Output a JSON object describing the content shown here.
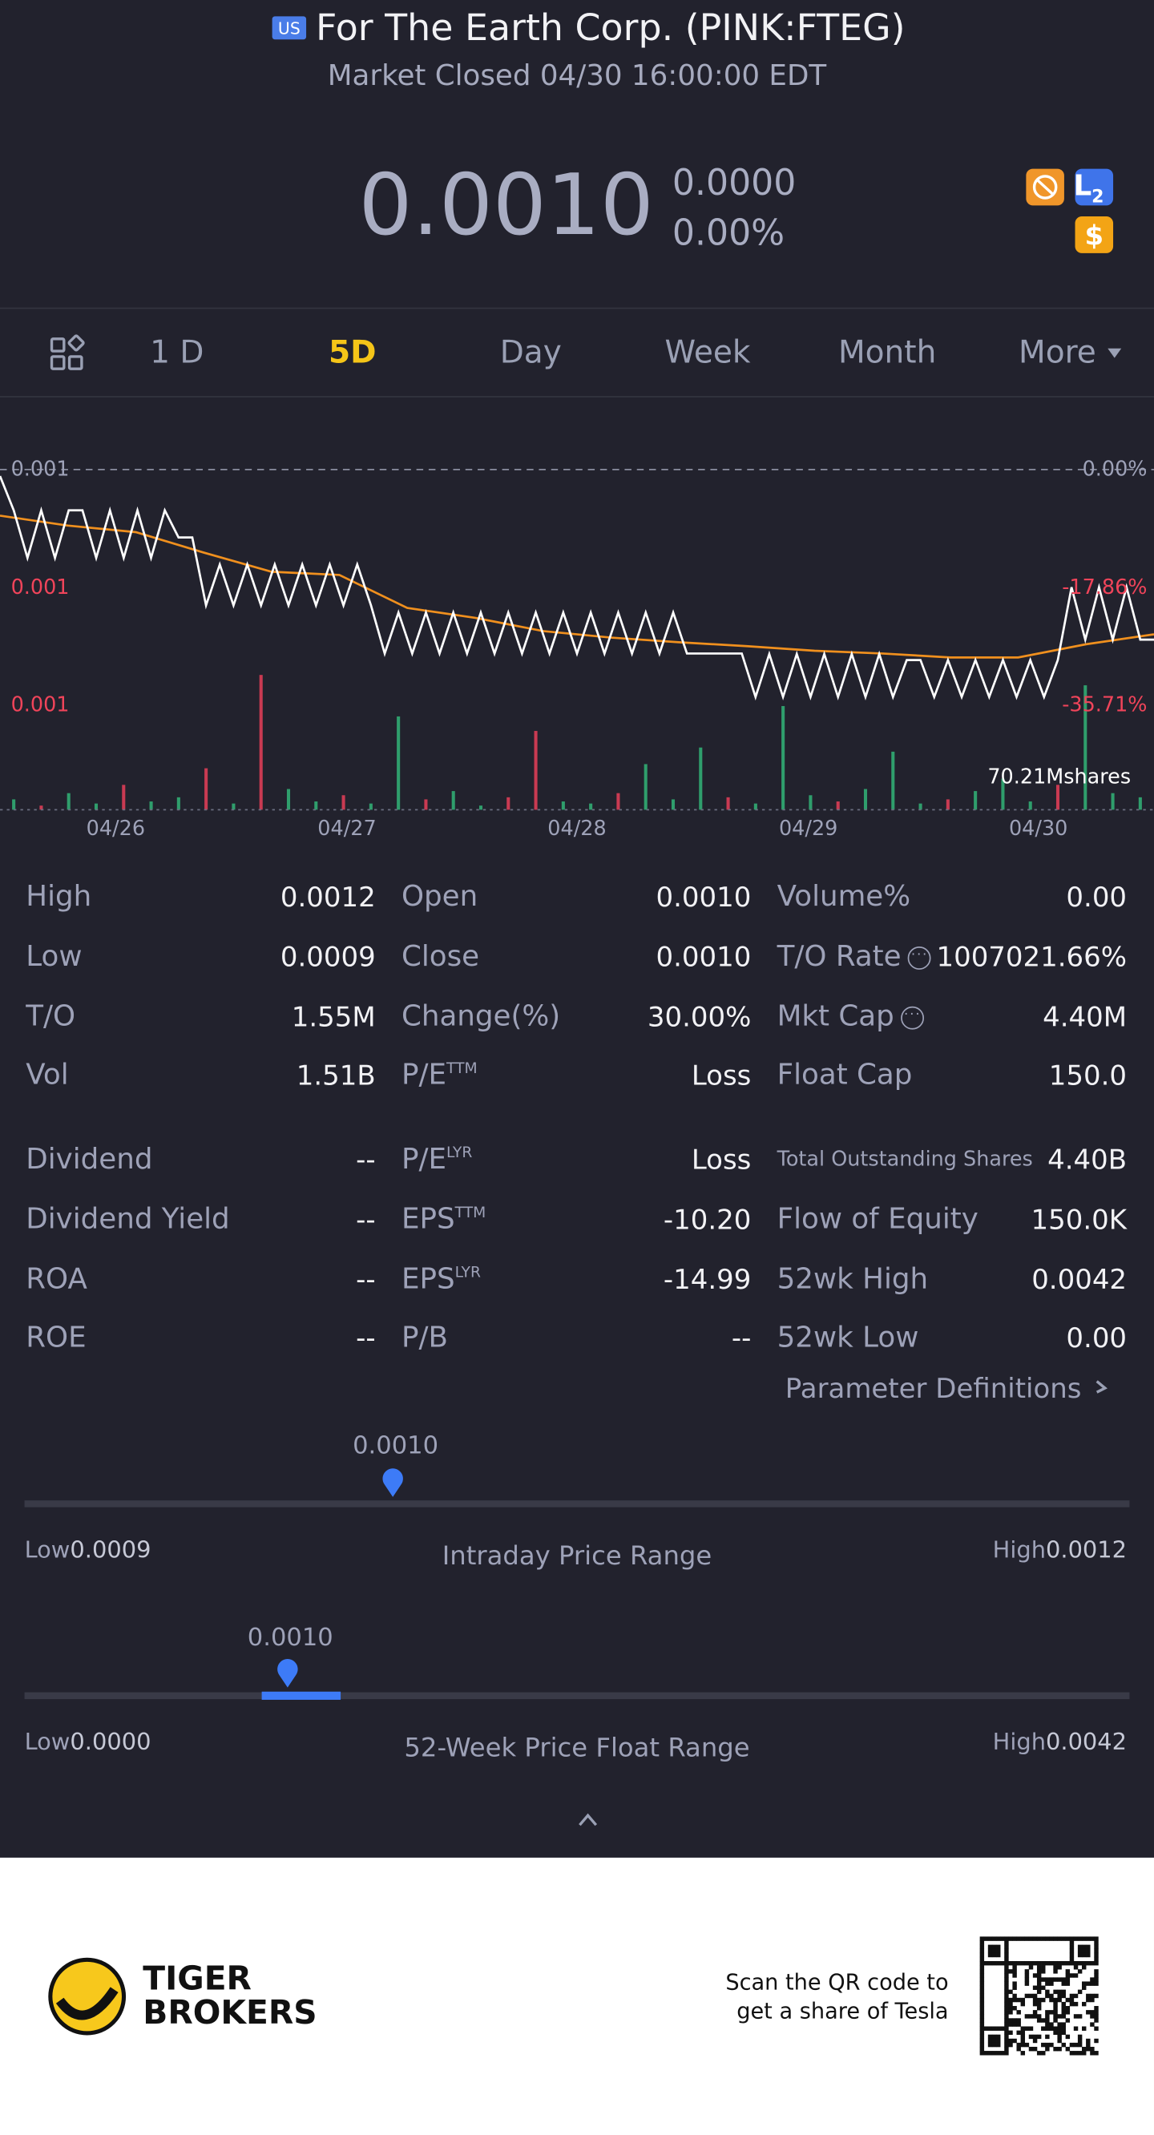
{
  "header": {
    "badge": "US",
    "title": "For The Earth Corp. (PINK:FTEG)",
    "status": "Market Closed 04/30 16:00:00 EDT"
  },
  "quote": {
    "price": "0.0010",
    "change": "0.0000",
    "change_percent": "0.00%",
    "level_badge": "L",
    "level_badge_sub": "2",
    "currency_badge": "$"
  },
  "tabs": {
    "items": [
      "1 D",
      "5D",
      "Day",
      "Week",
      "Month",
      "More"
    ],
    "active": 1
  },
  "chart": {
    "type": "line",
    "ylim": [
      -35.71,
      0
    ],
    "left_tick_labels": [
      "0.001",
      "0.001",
      "0.001"
    ],
    "yticks": [
      {
        "value": 0,
        "label": "0.00%"
      },
      {
        "value": -17.86,
        "label": "-17.86%"
      },
      {
        "value": -35.71,
        "label": "-35.71%"
      }
    ],
    "x_labels": [
      "04/26",
      "04/27",
      "04/28",
      "04/29",
      "04/30"
    ],
    "volume_label": "70.21Mshares",
    "volume_ylim": [
      0,
      70.21
    ],
    "price": {
      "color": "#ffffff",
      "values": [
        -1.0,
        -6.2,
        -13.4,
        -6.2,
        -13.4,
        -6.2,
        -6.2,
        -13.4,
        -6.2,
        -13.4,
        -6.2,
        -13.4,
        -6.2,
        -10.3,
        -10.3,
        -20.6,
        -14.4,
        -20.6,
        -14.4,
        -20.6,
        -14.4,
        -20.6,
        -14.4,
        -20.6,
        -14.4,
        -20.6,
        -14.4,
        -20.6,
        -27.9,
        -21.7,
        -27.9,
        -21.7,
        -27.9,
        -21.7,
        -27.9,
        -21.7,
        -27.9,
        -21.7,
        -27.9,
        -21.7,
        -27.9,
        -21.7,
        -27.9,
        -21.7,
        -27.9,
        -21.7,
        -27.9,
        -21.7,
        -27.9,
        -21.7,
        -27.9,
        -27.9,
        -27.9,
        -27.9,
        -27.9,
        -34.5,
        -28.0,
        -34.5,
        -28.0,
        -34.5,
        -28.0,
        -34.5,
        -28.0,
        -34.5,
        -28.0,
        -34.5,
        -28.9,
        -28.9,
        -34.5,
        -28.9,
        -34.5,
        -28.9,
        -34.5,
        -28.9,
        -34.5,
        -28.9,
        -34.5,
        -28.9,
        -17.86,
        -25.8,
        -17.86,
        -25.8,
        -17.86,
        -25.8,
        -25.8
      ]
    },
    "average": {
      "color": "#f0901e",
      "values": [
        -7.0,
        -8.5,
        -9.5,
        -12.6,
        -15.5,
        -16.0,
        -21.0,
        -22.5,
        -24.5,
        -25.5,
        -26.2,
        -26.8,
        -27.5,
        -27.9,
        -28.5,
        -28.5,
        -26.5,
        -25.0
      ]
    },
    "volume": {
      "values": [
        5,
        2,
        8,
        3,
        12,
        4,
        6,
        20,
        3,
        65,
        10,
        4,
        7,
        3,
        45,
        5,
        9,
        2,
        6,
        38,
        4,
        3,
        8,
        22,
        5,
        30,
        6,
        3,
        50,
        7,
        4,
        10,
        28,
        3,
        5,
        9,
        15,
        4,
        12,
        60,
        8,
        6
      ],
      "colors": [
        "#2f9e6c",
        "#c93a52",
        "#2f9e6c",
        "#2f9e6c",
        "#c93a52",
        "#2f9e6c",
        "#2f9e6c",
        "#c93a52",
        "#2f9e6c",
        "#c93a52",
        "#2f9e6c",
        "#2f9e6c",
        "#c93a52",
        "#2f9e6c",
        "#2f9e6c",
        "#c93a52",
        "#2f9e6c",
        "#2f9e6c",
        "#c93a52",
        "#c93a52",
        "#2f9e6c",
        "#2f9e6c",
        "#c93a52",
        "#2f9e6c",
        "#2f9e6c",
        "#2f9e6c",
        "#c93a52",
        "#2f9e6c",
        "#2f9e6c",
        "#2f9e6c",
        "#c93a52",
        "#2f9e6c",
        "#2f9e6c",
        "#2f9e6c",
        "#c93a52",
        "#2f9e6c",
        "#2f9e6c",
        "#2f9e6c",
        "#c93a52",
        "#2f9e6c",
        "#2f9e6c",
        "#2f9e6c"
      ]
    }
  },
  "stats": {
    "blocks": [
      [
        [
          {
            "label": "High",
            "value": "0.0012"
          },
          {
            "label": "Low",
            "value": "0.0009"
          },
          {
            "label": "T/O",
            "value": "1.55M"
          },
          {
            "label": "Vol",
            "value": "1.51B"
          }
        ],
        [
          {
            "label": "Open",
            "value": "0.0010"
          },
          {
            "label": "Close",
            "value": "0.0010"
          },
          {
            "label": "Change(%)",
            "value": "30.00%"
          },
          {
            "label": "P/E",
            "sup": "TTM",
            "value": "Loss"
          }
        ],
        [
          {
            "label": "Volume%",
            "value": "0.00"
          },
          {
            "label": "T/O Rate",
            "info": true,
            "value": "1007021.66%"
          },
          {
            "label": "Mkt Cap",
            "info": true,
            "value": "4.40M"
          },
          {
            "label": "Float Cap",
            "value": "150.0"
          }
        ]
      ],
      [
        [
          {
            "label": "Dividend",
            "value": "--"
          },
          {
            "label": "Dividend Yield",
            "value": "--"
          },
          {
            "label": "ROA",
            "value": "--"
          },
          {
            "label": "ROE",
            "value": "--"
          }
        ],
        [
          {
            "label": "P/E",
            "sup": "LYR",
            "value": "Loss"
          },
          {
            "label": "EPS",
            "sup": "TTM",
            "value": "-10.20"
          },
          {
            "label": "EPS",
            "sup": "LYR",
            "value": "-14.99"
          },
          {
            "label": "P/B",
            "value": "--"
          }
        ],
        [
          {
            "label": "Total Outstanding Shares",
            "value": "4.40B"
          },
          {
            "label": "Flow of Equity",
            "value": "150.0K"
          },
          {
            "label": "52wk High",
            "value": "0.0042"
          },
          {
            "label": "52wk Low",
            "value": "0.00"
          }
        ]
      ]
    ]
  },
  "parameter_link": "Parameter Definitions",
  "ranges": [
    {
      "current": "0.0010",
      "low_label": "Low",
      "low": "0.0009",
      "title": "Intraday Price Range",
      "high_label": "High",
      "high": "0.0012"
    },
    {
      "current": "0.0010",
      "low_label": "Low",
      "low": "0.0000",
      "title": "52-Week Price Float Range",
      "high_label": "High",
      "high": "0.0042"
    }
  ],
  "footer": {
    "brand": [
      "TIGER",
      "BROKERS"
    ],
    "promo": [
      "Scan the QR code to",
      "get a share of Tesla"
    ]
  }
}
